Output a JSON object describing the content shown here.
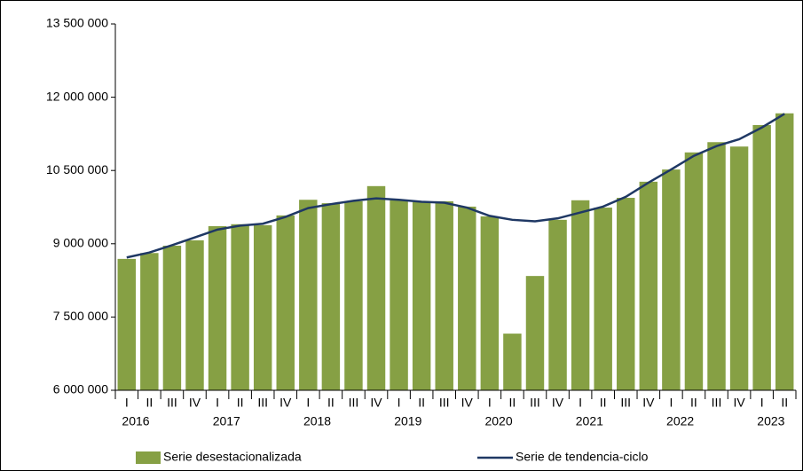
{
  "chart_data": {
    "type": "bar",
    "categories": [
      "I",
      "II",
      "III",
      "IV",
      "I",
      "II",
      "III",
      "IV",
      "I",
      "II",
      "III",
      "IV",
      "I",
      "II",
      "III",
      "IV",
      "I",
      "II",
      "III",
      "IV",
      "I",
      "II",
      "III",
      "IV",
      "I",
      "II",
      "III",
      "IV",
      "I",
      "II"
    ],
    "years": [
      "2016",
      "2017",
      "2018",
      "2019",
      "2020",
      "2021",
      "2022",
      "2023"
    ],
    "series": [
      {
        "name": "Serie desestacionalizada",
        "type": "bar",
        "color": "#86a044",
        "values": [
          8690000,
          8810000,
          8960000,
          9070000,
          9360000,
          9400000,
          9380000,
          9580000,
          9900000,
          9830000,
          9870000,
          10180000,
          9890000,
          9850000,
          9870000,
          9760000,
          9560000,
          7160000,
          8340000,
          9490000,
          9890000,
          9740000,
          9940000,
          10270000,
          10520000,
          10870000,
          11080000,
          10990000,
          11430000,
          11670000
        ]
      },
      {
        "name": "Serie de tendencia-ciclo",
        "type": "line",
        "color": "#1f3864",
        "values": [
          8720000,
          8820000,
          8970000,
          9130000,
          9290000,
          9370000,
          9410000,
          9550000,
          9730000,
          9810000,
          9880000,
          9930000,
          9900000,
          9860000,
          9840000,
          9740000,
          9570000,
          9490000,
          9460000,
          9520000,
          9640000,
          9760000,
          9960000,
          10250000,
          10520000,
          10800000,
          11000000,
          11140000,
          11380000,
          11660000
        ]
      }
    ],
    "ylim": [
      6000000,
      13500000
    ],
    "yticks": [
      {
        "value": 6000000,
        "label": "6 000 000"
      },
      {
        "value": 7500000,
        "label": "7 500 000"
      },
      {
        "value": 9000000,
        "label": "9 000 000"
      },
      {
        "value": 10500000,
        "label": "10 500 000"
      },
      {
        "value": 12000000,
        "label": "12 000 000"
      },
      {
        "value": 13500000,
        "label": "13 500 000"
      }
    ],
    "grid": false,
    "legend": "bottom"
  }
}
